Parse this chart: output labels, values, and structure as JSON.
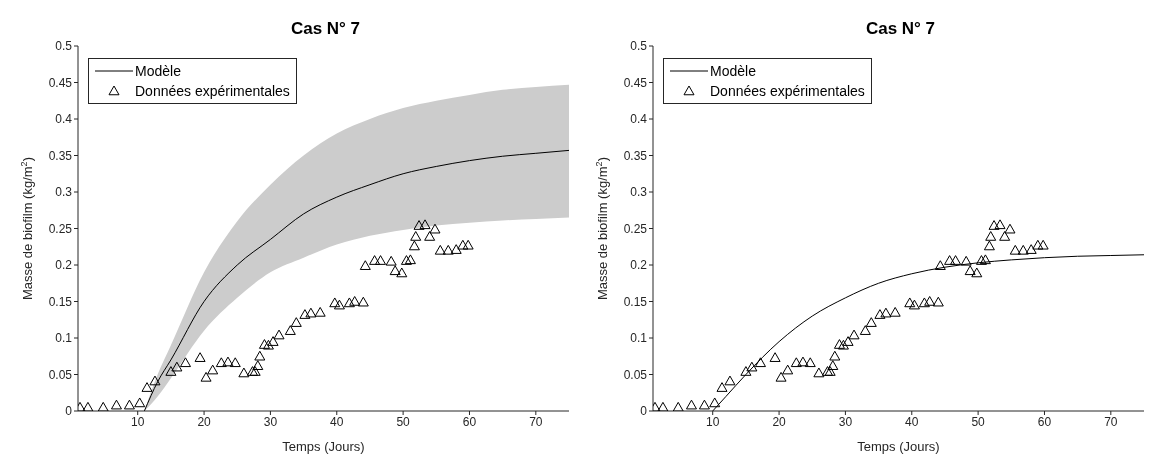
{
  "chart_data": [
    {
      "type": "line",
      "title": "Cas N° 7",
      "xlabel": "Temps (Jours)",
      "ylabel": "Masse de biofilm (kg/m$^{2}$)",
      "xlim": [
        1,
        75
      ],
      "xticks": [
        10,
        20,
        30,
        40,
        50,
        60,
        70
      ],
      "ylim": [
        0,
        0.5
      ],
      "yticks": [
        0,
        0.05,
        0.1,
        0.15,
        0.2,
        0.25,
        0.3,
        0.35,
        0.4,
        0.45,
        0.5
      ],
      "grid": false,
      "legend": "top left",
      "series": [
        {
          "name": "Modèle",
          "color": "#000000",
          "line_style": "solid",
          "marker": "none",
          "x": [
            11,
            13,
            15,
            20,
            25,
            30,
            35,
            40,
            45,
            50,
            55,
            60,
            65,
            70,
            75
          ],
          "values": [
            0,
            0.04,
            0.07,
            0.15,
            0.2,
            0.235,
            0.27,
            0.293,
            0.31,
            0.325,
            0.335,
            0.343,
            0.349,
            0.353,
            0.357
          ],
          "lower": [
            0,
            0.02,
            0.045,
            0.11,
            0.155,
            0.19,
            0.21,
            0.228,
            0.24,
            0.248,
            0.254,
            0.258,
            0.261,
            0.263,
            0.265
          ],
          "upper": [
            0,
            0.05,
            0.09,
            0.19,
            0.26,
            0.31,
            0.35,
            0.38,
            0.4,
            0.415,
            0.425,
            0.433,
            0.44,
            0.444,
            0.447
          ]
        },
        {
          "name": "Données expérimentales",
          "type": "scatter",
          "color": "#000000",
          "marker": "triangle",
          "x": [
            1.3,
            2.5,
            4.8,
            6.8,
            8.75,
            10.3,
            11.4,
            12.6,
            15.0,
            15.9,
            17.2,
            19.4,
            20.3,
            21.3,
            22.6,
            23.6,
            24.7,
            26.0,
            27.3,
            27.7,
            28.1,
            28.4,
            29.1,
            29.7,
            30.4,
            31.3,
            33.0,
            33.9,
            35.2,
            36.1,
            37.5,
            39.7,
            40.4,
            41.9,
            42.7,
            44.0,
            44.3,
            45.7,
            46.6,
            48.2,
            48.8,
            49.8,
            50.5,
            51.1,
            51.7,
            51.9,
            52.4,
            53.3,
            54.0,
            54.8,
            55.6,
            56.8,
            58.0,
            59.0,
            59.8
          ],
          "values": [
            0.005,
            0.005,
            0.005,
            0.008,
            0.008,
            0.011,
            0.032,
            0.041,
            0.054,
            0.06,
            0.066,
            0.073,
            0.046,
            0.056,
            0.066,
            0.067,
            0.066,
            0.052,
            0.054,
            0.054,
            0.062,
            0.075,
            0.091,
            0.09,
            0.095,
            0.104,
            0.11,
            0.121,
            0.132,
            0.134,
            0.135,
            0.148,
            0.145,
            0.148,
            0.15,
            0.149,
            0.199,
            0.206,
            0.206,
            0.205,
            0.192,
            0.189,
            0.206,
            0.207,
            0.226,
            0.239,
            0.254,
            0.255,
            0.239,
            0.249,
            0.22,
            0.22,
            0.221,
            0.227,
            0.227
          ]
        }
      ]
    },
    {
      "type": "line",
      "title": "Cas N° 7",
      "xlabel": "Temps (Jours)",
      "ylabel": "Masse de biofilm (kg/m$^{2}$)",
      "xlim": [
        1,
        75
      ],
      "xticks": [
        10,
        20,
        30,
        40,
        50,
        60,
        70
      ],
      "ylim": [
        0,
        0.5
      ],
      "yticks": [
        0,
        0.05,
        0.1,
        0.15,
        0.2,
        0.25,
        0.3,
        0.35,
        0.4,
        0.45,
        0.5
      ],
      "grid": false,
      "legend": "top left",
      "series": [
        {
          "name": "Modèle",
          "color": "#000000",
          "line_style": "solid",
          "marker": "none",
          "x": [
            10,
            12,
            15,
            20,
            25,
            30,
            35,
            40,
            45,
            50,
            55,
            60,
            65,
            70,
            75
          ],
          "values": [
            0,
            0.02,
            0.05,
            0.095,
            0.13,
            0.155,
            0.175,
            0.188,
            0.197,
            0.203,
            0.207,
            0.21,
            0.212,
            0.213,
            0.214
          ]
        },
        {
          "name": "Données expérimentales",
          "type": "scatter",
          "color": "#000000",
          "marker": "triangle",
          "x": [
            1.3,
            2.5,
            4.8,
            6.8,
            8.75,
            10.3,
            11.4,
            12.6,
            15.0,
            15.9,
            17.2,
            19.4,
            20.3,
            21.3,
            22.6,
            23.6,
            24.7,
            26.0,
            27.3,
            27.7,
            28.1,
            28.4,
            29.1,
            29.7,
            30.4,
            31.3,
            33.0,
            33.9,
            35.2,
            36.1,
            37.5,
            39.7,
            40.4,
            41.9,
            42.7,
            44.0,
            44.3,
            45.7,
            46.6,
            48.2,
            48.8,
            49.8,
            50.5,
            51.1,
            51.7,
            51.9,
            52.4,
            53.3,
            54.0,
            54.8,
            55.6,
            56.8,
            58.0,
            59.0,
            59.8
          ],
          "values": [
            0.005,
            0.005,
            0.005,
            0.008,
            0.008,
            0.011,
            0.032,
            0.041,
            0.054,
            0.06,
            0.066,
            0.073,
            0.046,
            0.056,
            0.066,
            0.067,
            0.066,
            0.052,
            0.054,
            0.054,
            0.062,
            0.075,
            0.091,
            0.09,
            0.095,
            0.104,
            0.11,
            0.121,
            0.132,
            0.134,
            0.135,
            0.148,
            0.145,
            0.148,
            0.15,
            0.149,
            0.199,
            0.206,
            0.206,
            0.205,
            0.192,
            0.189,
            0.206,
            0.207,
            0.226,
            0.239,
            0.254,
            0.255,
            0.239,
            0.249,
            0.22,
            0.22,
            0.221,
            0.227,
            0.227
          ]
        }
      ]
    }
  ]
}
